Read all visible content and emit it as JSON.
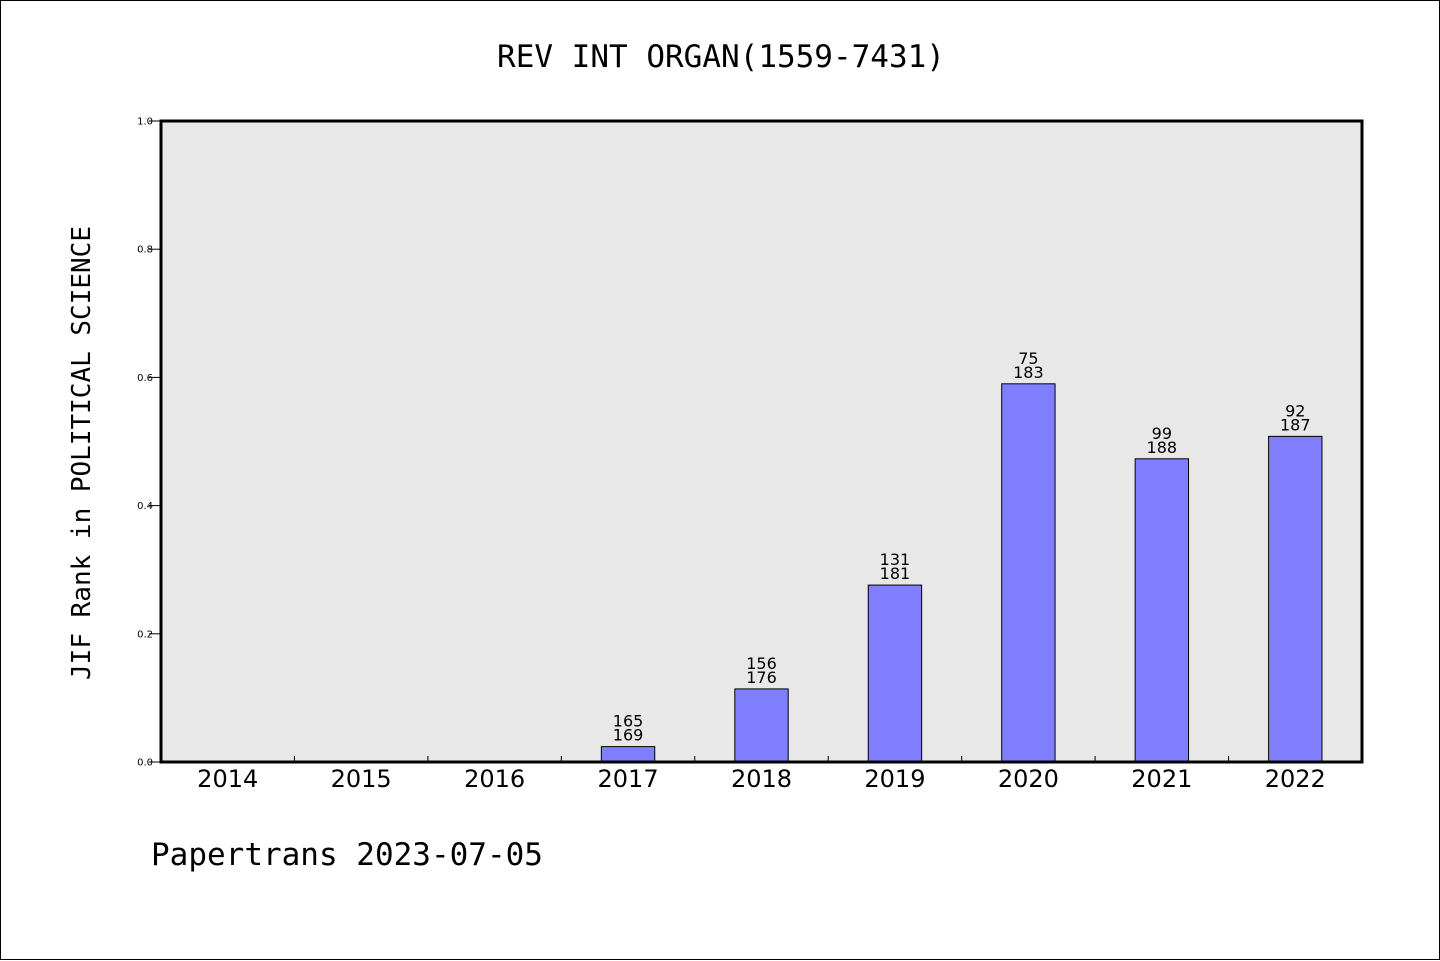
{
  "chart_data": {
    "type": "bar",
    "title": "REV INT ORGAN(1559-7431)",
    "xlabel": "",
    "ylabel": "JIF Rank in POLITICAL SCIENCE",
    "ylim": [
      0.0,
      1.0
    ],
    "yticks": [
      "0.0",
      "0.2",
      "0.4",
      "0.6",
      "0.8",
      "1.0"
    ],
    "categories": [
      "2014",
      "2015",
      "2016",
      "2017",
      "2018",
      "2019",
      "2020",
      "2021",
      "2022"
    ],
    "values": [
      null,
      null,
      null,
      0.024,
      0.114,
      0.276,
      0.59,
      0.473,
      0.508
    ],
    "rank": [
      null,
      null,
      null,
      "165",
      "156",
      "131",
      "75",
      "99",
      "92"
    ],
    "total": [
      null,
      null,
      null,
      "169",
      "176",
      "181",
      "183",
      "188",
      "187"
    ],
    "grid": false,
    "colors": {
      "bar": "#8080ff",
      "plot_bg": "#e8e8e8"
    }
  },
  "footer": "Papertrans 2023-07-05"
}
